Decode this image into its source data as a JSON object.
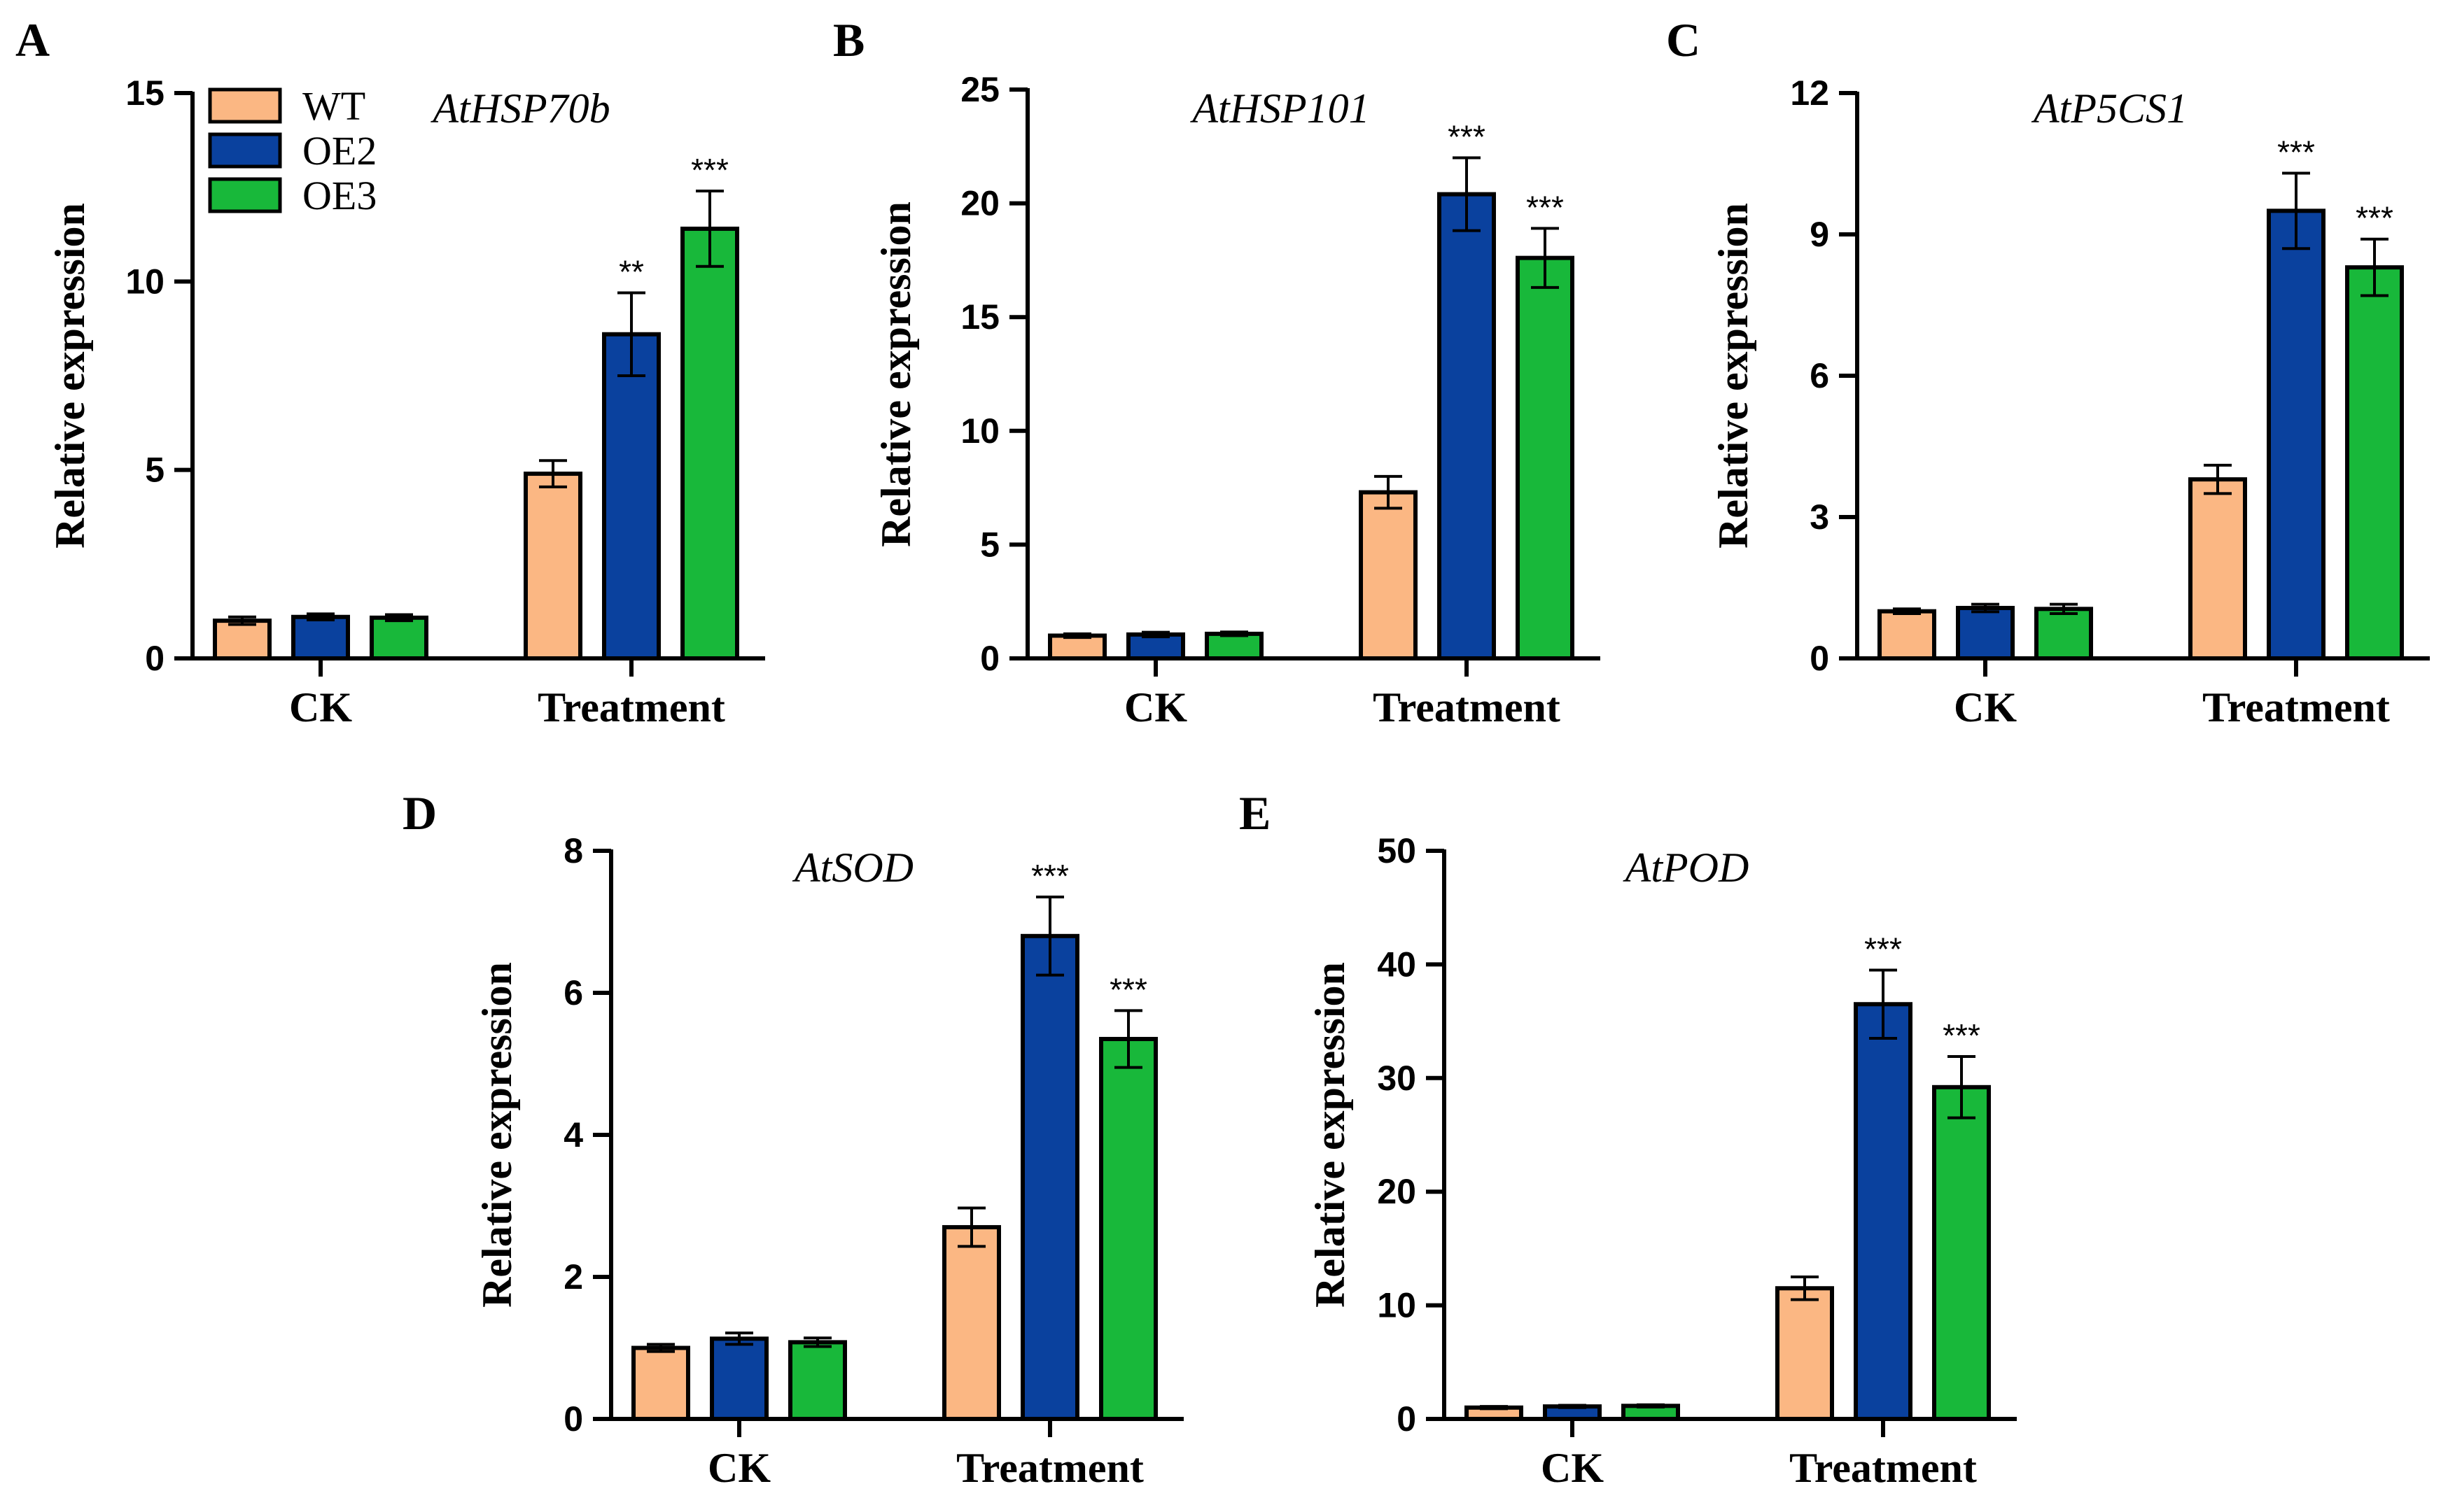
{
  "legend": [
    {
      "name": "WT",
      "color": "#FBB783"
    },
    {
      "name": "OE2",
      "color": "#0A419E"
    },
    {
      "name": "OE3",
      "color": "#18B83A"
    }
  ],
  "chart_data": [
    {
      "type": "bar",
      "panel": "A",
      "title": "AtHSP70b",
      "categories": [
        "CK",
        "Treatment"
      ],
      "ylabel": "Relative expression",
      "ylim": [
        0,
        15
      ],
      "yticks": [
        "0",
        "5",
        "10",
        "15"
      ],
      "series": [
        {
          "name": "WT",
          "values": [
            1.0,
            4.9
          ],
          "errors": [
            0.1,
            0.35
          ]
        },
        {
          "name": "OE2",
          "values": [
            1.1,
            8.6
          ],
          "errors": [
            0.08,
            1.1
          ]
        },
        {
          "name": "OE3",
          "values": [
            1.08,
            11.4
          ],
          "errors": [
            0.08,
            1.0
          ]
        }
      ],
      "annotations": [
        {
          "series": "OE2",
          "category": "Treatment",
          "text": "**"
        },
        {
          "series": "OE3",
          "category": "Treatment",
          "text": "***"
        }
      ]
    },
    {
      "type": "bar",
      "panel": "B",
      "title": "AtHSP101",
      "categories": [
        "CK",
        "Treatment"
      ],
      "ylabel": "Relative expression",
      "ylim": [
        0,
        25
      ],
      "yticks": [
        "0",
        "5",
        "10",
        "15",
        "20",
        "25"
      ],
      "series": [
        {
          "name": "WT",
          "values": [
            1.0,
            7.3
          ],
          "errors": [
            0.08,
            0.7
          ]
        },
        {
          "name": "OE2",
          "values": [
            1.05,
            20.4
          ],
          "errors": [
            0.1,
            1.6
          ]
        },
        {
          "name": "OE3",
          "values": [
            1.08,
            17.6
          ],
          "errors": [
            0.08,
            1.3
          ]
        }
      ],
      "annotations": [
        {
          "series": "OE2",
          "category": "Treatment",
          "text": "***"
        },
        {
          "series": "OE3",
          "category": "Treatment",
          "text": "***"
        }
      ]
    },
    {
      "type": "bar",
      "panel": "C",
      "title": "AtP5CS1",
      "categories": [
        "CK",
        "Treatment"
      ],
      "ylabel": "Relative expression",
      "ylim": [
        0,
        12
      ],
      "yticks": [
        "0",
        "3",
        "6",
        "9",
        "12"
      ],
      "series": [
        {
          "name": "WT",
          "values": [
            1.0,
            3.8
          ],
          "errors": [
            0.05,
            0.3
          ]
        },
        {
          "name": "OE2",
          "values": [
            1.07,
            9.5
          ],
          "errors": [
            0.08,
            0.8
          ]
        },
        {
          "name": "OE3",
          "values": [
            1.05,
            8.3
          ],
          "errors": [
            0.1,
            0.6
          ]
        }
      ],
      "annotations": [
        {
          "series": "OE2",
          "category": "Treatment",
          "text": "***"
        },
        {
          "series": "OE3",
          "category": "Treatment",
          "text": "***"
        }
      ]
    },
    {
      "type": "bar",
      "panel": "D",
      "title": "AtSOD",
      "categories": [
        "CK",
        "Treatment"
      ],
      "ylabel": "Relative expression",
      "ylim": [
        0,
        8
      ],
      "yticks": [
        "0",
        "2",
        "4",
        "6",
        "8"
      ],
      "series": [
        {
          "name": "WT",
          "values": [
            1.0,
            2.7
          ],
          "errors": [
            0.05,
            0.27
          ]
        },
        {
          "name": "OE2",
          "values": [
            1.13,
            6.8
          ],
          "errors": [
            0.08,
            0.55
          ]
        },
        {
          "name": "OE3",
          "values": [
            1.08,
            5.35
          ],
          "errors": [
            0.06,
            0.4
          ]
        }
      ],
      "annotations": [
        {
          "series": "OE2",
          "category": "Treatment",
          "text": "***"
        },
        {
          "series": "OE3",
          "category": "Treatment",
          "text": "***"
        }
      ]
    },
    {
      "type": "bar",
      "panel": "E",
      "title": "AtPOD",
      "categories": [
        "CK",
        "Treatment"
      ],
      "ylabel": "Relative expression",
      "ylim": [
        0,
        50
      ],
      "yticks": [
        "0",
        "10",
        "20",
        "30",
        "40",
        "50"
      ],
      "series": [
        {
          "name": "WT",
          "values": [
            1.0,
            11.5
          ],
          "errors": [
            0.1,
            1.0
          ]
        },
        {
          "name": "OE2",
          "values": [
            1.1,
            36.5
          ],
          "errors": [
            0.1,
            3.0
          ]
        },
        {
          "name": "OE3",
          "values": [
            1.15,
            29.2
          ],
          "errors": [
            0.1,
            2.7
          ]
        }
      ],
      "annotations": [
        {
          "series": "OE2",
          "category": "Treatment",
          "text": "***"
        },
        {
          "series": "OE3",
          "category": "Treatment",
          "text": "***"
        }
      ]
    }
  ]
}
